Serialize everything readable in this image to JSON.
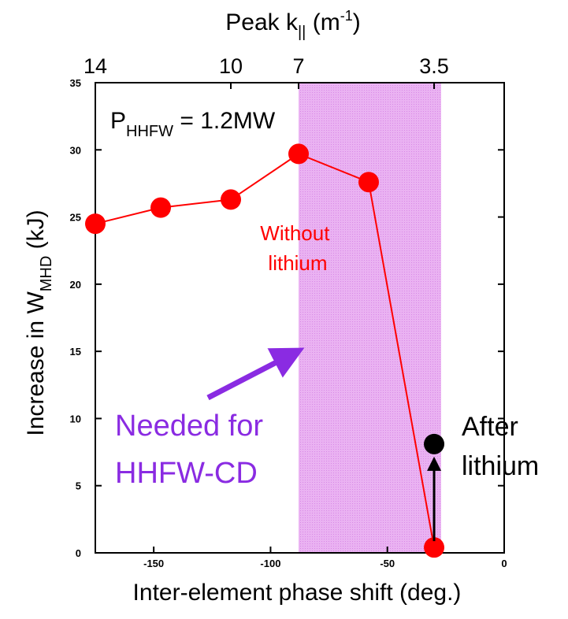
{
  "chart_data": {
    "type": "line",
    "xlabel": "Inter-element phase shift (deg.)",
    "ylabel_main": "Increase in W",
    "ylabel_sub": "MHD",
    "ylabel_unit": "(kJ)",
    "top_axis_label_main": "Peak k",
    "top_axis_label_sub": "||",
    "top_axis_label_unit": "(m",
    "top_axis_label_sup": "-1",
    "top_axis_label_close": ")",
    "xlim": [
      -175,
      0
    ],
    "ylim": [
      0,
      35
    ],
    "x_ticks": [
      -150,
      -100,
      -50,
      0
    ],
    "y_ticks": [
      0,
      5,
      10,
      15,
      20,
      25,
      30,
      35
    ],
    "top_ticks": [
      {
        "label": "14",
        "x": -175
      },
      {
        "label": "10",
        "x": -117
      },
      {
        "label": "7",
        "x": -88
      },
      {
        "label": "3.5",
        "x": -30
      }
    ],
    "power_label_main": "P",
    "power_label_sub": "HHFW",
    "power_label_value": " = 1.2MW",
    "shaded_region": {
      "x_start": -88,
      "x_end": -27,
      "color": "#e7a8f0"
    },
    "series": [
      {
        "name": "Without lithium",
        "color": "#ff0000",
        "x": [
          -175,
          -147,
          -117,
          -88,
          -58,
          -30
        ],
        "y": [
          24.5,
          25.7,
          26.3,
          29.7,
          27.6,
          0.4
        ]
      },
      {
        "name": "After lithium",
        "color": "#000000",
        "x": [
          -30
        ],
        "y": [
          8.1
        ]
      }
    ],
    "arrow_from": {
      "x": -30,
      "y": 0.4
    },
    "arrow_to": {
      "x": -30,
      "y": 8.1
    },
    "annotations": {
      "without_lithium": [
        "Without",
        "lithium"
      ],
      "after_lithium": [
        "After",
        "lithium"
      ],
      "needed_for": [
        "Needed for",
        "HHFW-CD"
      ]
    },
    "colors": {
      "red": "#ff0000",
      "purple": "#8a2be2",
      "black": "#000000"
    }
  }
}
